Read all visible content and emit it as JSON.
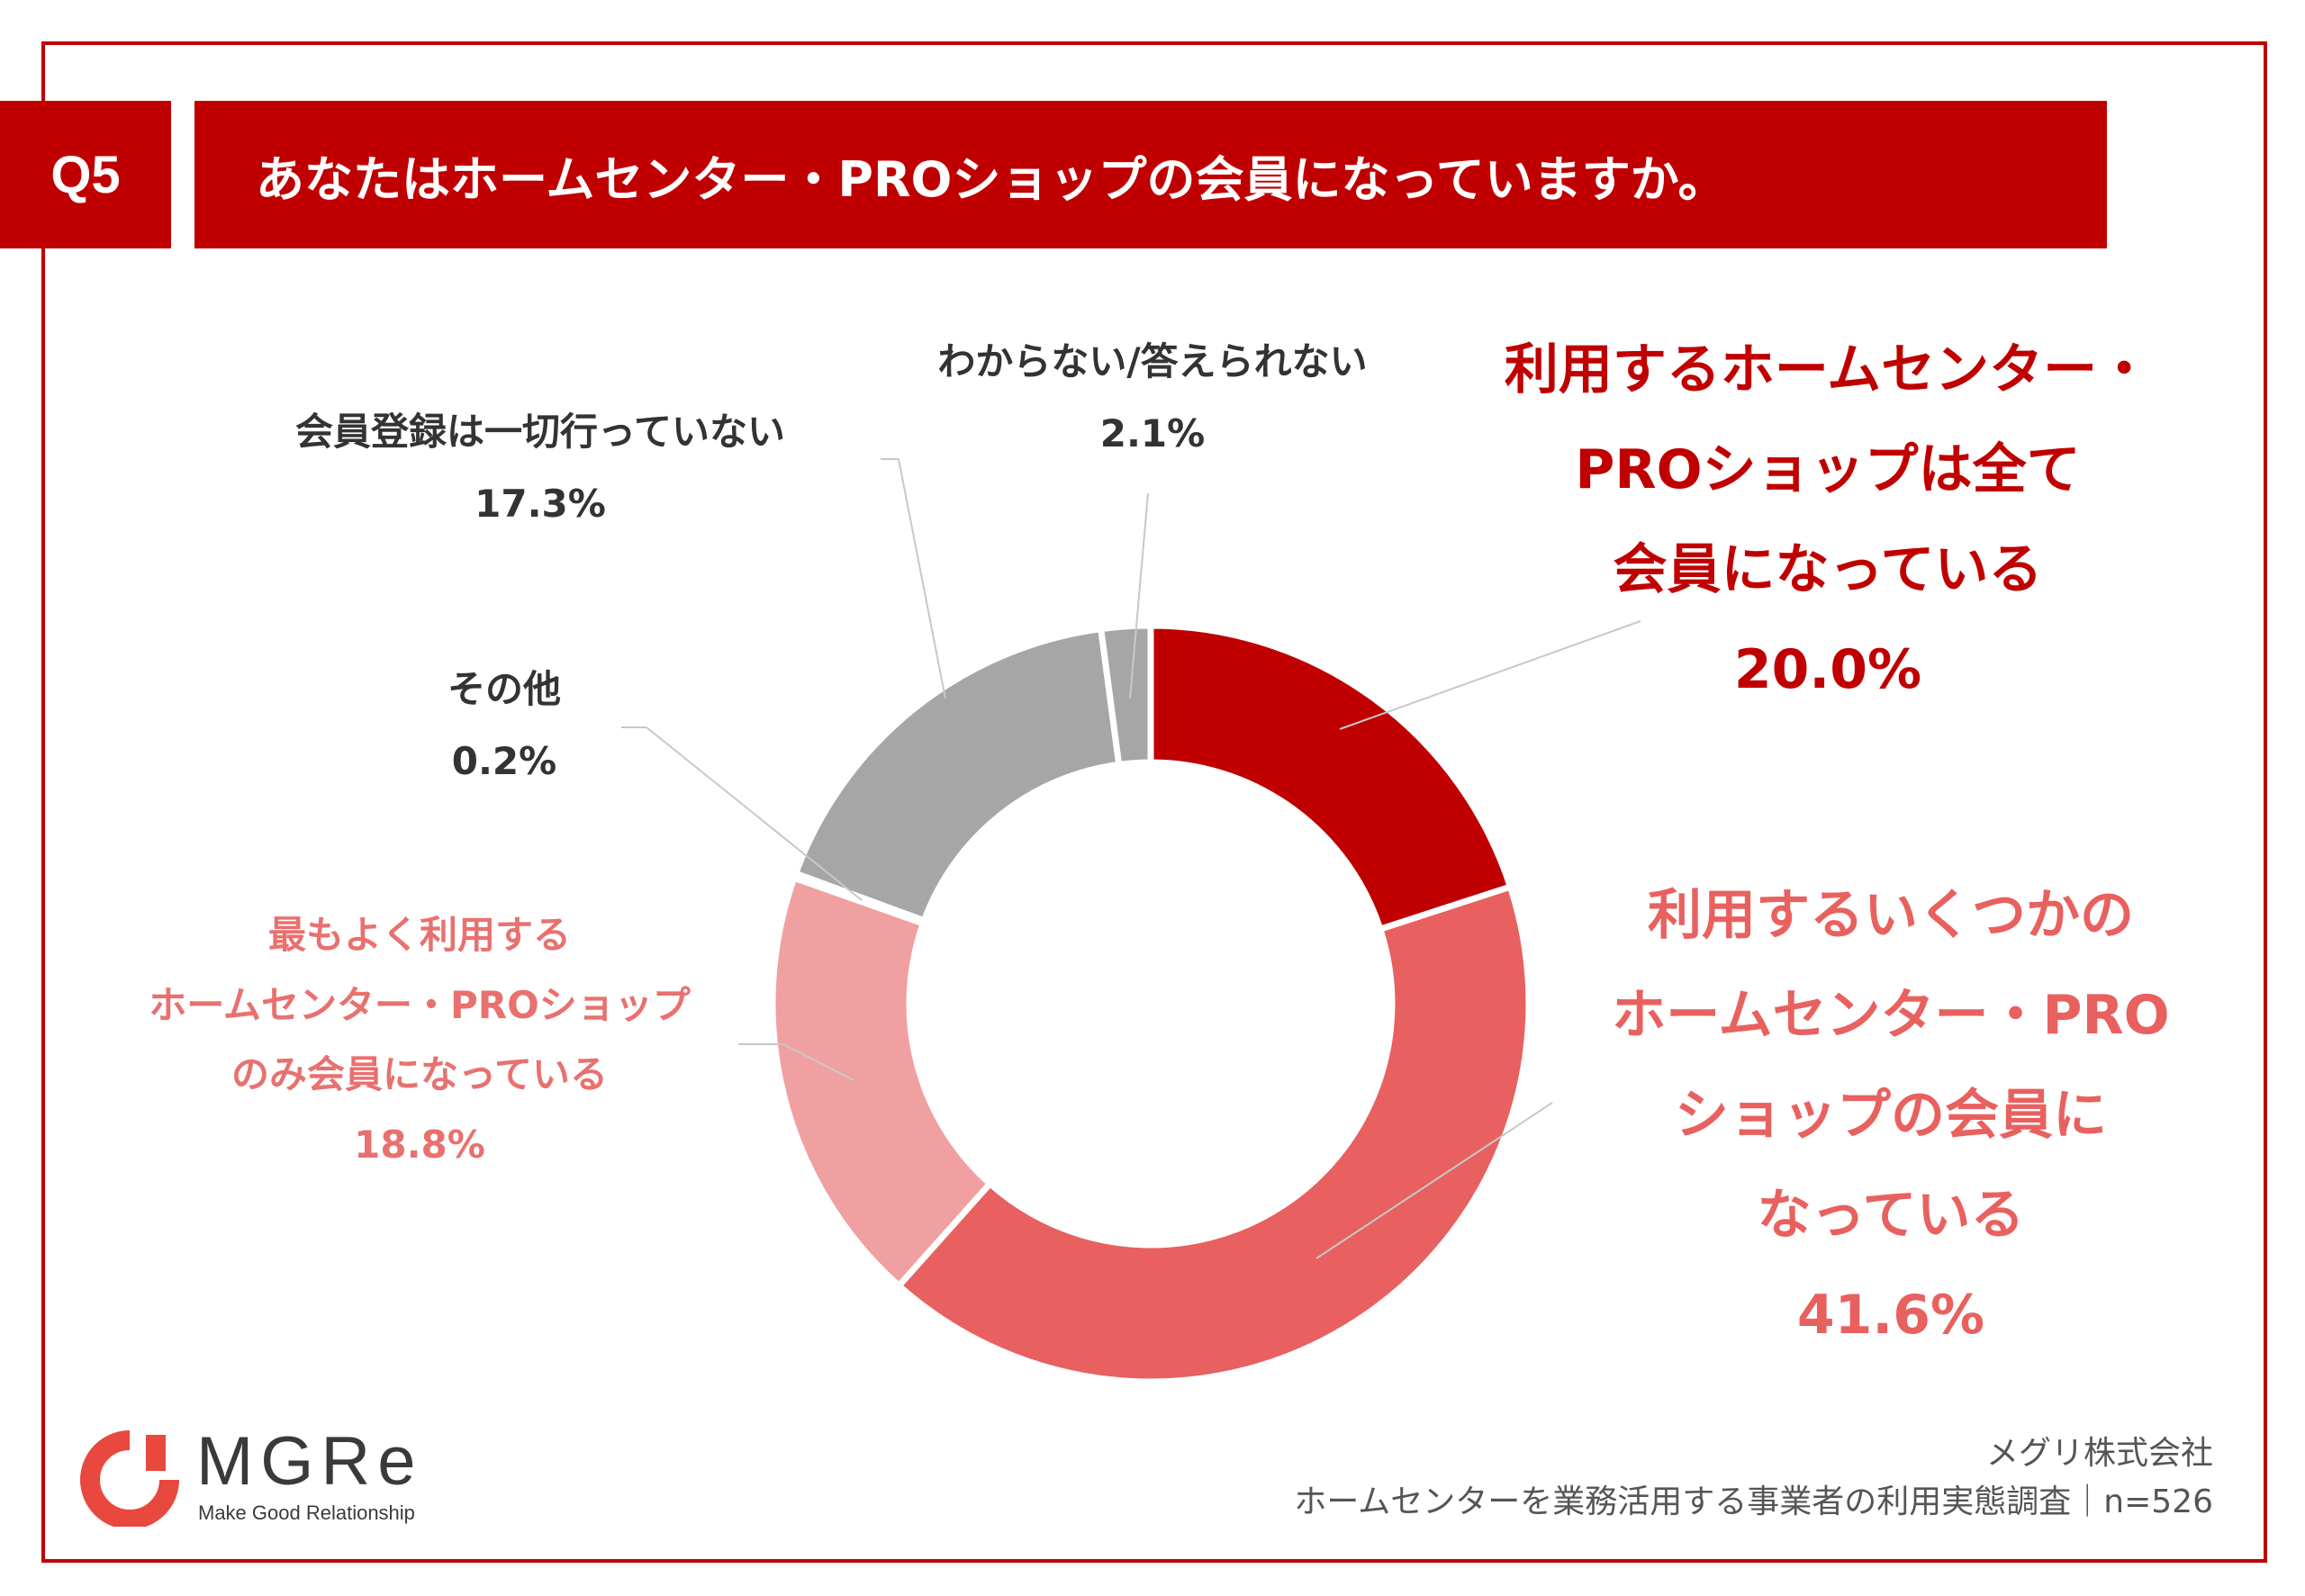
{
  "header": {
    "badge": "Q5",
    "question": "あなたはホームセンター・PROショップの会員になっていますか。"
  },
  "chart_data": {
    "type": "donut",
    "categories": [
      "利用するホームセンター・PROショップは全て会員になっている",
      "利用するいくつかのホームセンター・PROショップの会員になっている",
      "最もよく利用するホームセンター・PROショップのみ会員になっている",
      "その他",
      "会員登録は一切行っていない",
      "わからない/答えられない"
    ],
    "values": [
      20.0,
      41.6,
      18.8,
      0.2,
      17.3,
      2.1
    ],
    "colors": [
      "#c00000",
      "#e86060",
      "#f0a0a0",
      "#a6a6a6",
      "#a6a6a6",
      "#a6a6a6"
    ],
    "value_labels": [
      "20.0%",
      "41.6%",
      "18.8%",
      "0.2%",
      "17.3%",
      "2.1%"
    ]
  },
  "labels": {
    "all_members": [
      "利用するホームセンター・",
      "PROショップは全て",
      "会員になっている"
    ],
    "some_members": [
      "利用するいくつかの",
      "ホームセンター・PRO",
      "ショップの会員に",
      "なっている"
    ],
    "most_used_only": [
      "最もよく利用する",
      "ホームセンター・PROショップ",
      "のみ会員になっている"
    ],
    "other": [
      "その他"
    ],
    "none": [
      "会員登録は一切行っていない"
    ],
    "unknown": [
      "わからない/答えられない"
    ]
  },
  "logo": {
    "name": "MGRe",
    "tagline": "Make Good Relationship"
  },
  "footer": {
    "company": "メグリ株式会社",
    "survey": "ホームセンターを業務活用する事業者の利用実態調査｜n=526"
  }
}
